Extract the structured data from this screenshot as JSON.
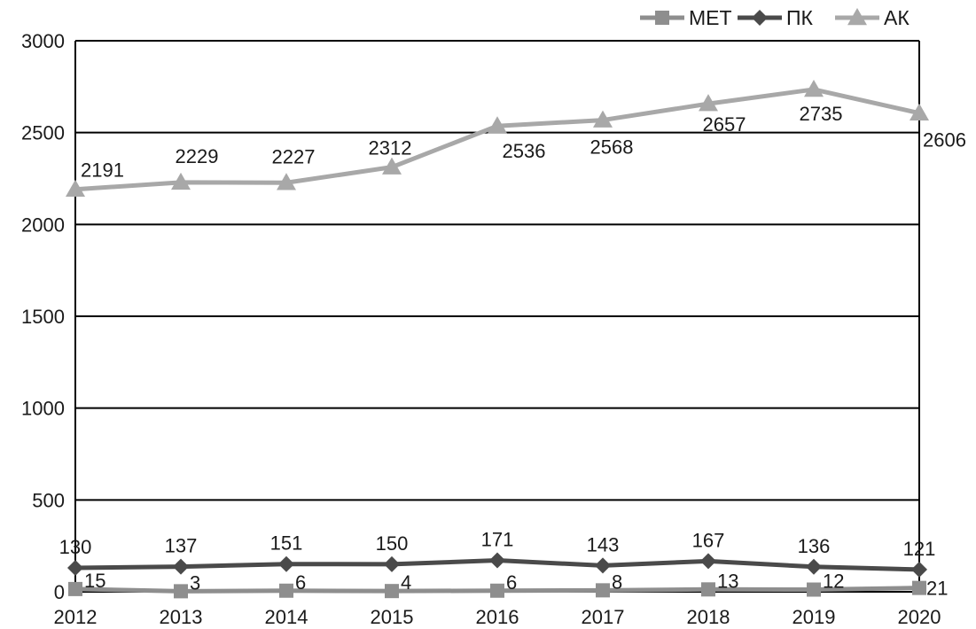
{
  "chart_data": {
    "type": "line",
    "title": "",
    "xlabel": "",
    "ylabel": "",
    "categories": [
      "2012",
      "2013",
      "2014",
      "2015",
      "2016",
      "2017",
      "2018",
      "2019",
      "2020"
    ],
    "ylim": [
      0,
      3000
    ],
    "yticks": [
      "0",
      "500",
      "1000",
      "1500",
      "2000",
      "2500",
      "3000"
    ],
    "grid": true,
    "legend_position": "top-right",
    "series": [
      {
        "name": "МЕТ",
        "marker": "square",
        "color": "#8e8e8e",
        "values": [
          15,
          3,
          6,
          4,
          6,
          8,
          13,
          12,
          21
        ]
      },
      {
        "name": "ПК",
        "marker": "diamond",
        "color": "#4a4a4a",
        "values": [
          130,
          137,
          151,
          150,
          171,
          143,
          167,
          136,
          121
        ]
      },
      {
        "name": "АК",
        "marker": "triangle",
        "color": "#a8a8a8",
        "values": [
          2191,
          2229,
          2227,
          2312,
          2536,
          2568,
          2657,
          2735,
          2606
        ]
      }
    ]
  }
}
